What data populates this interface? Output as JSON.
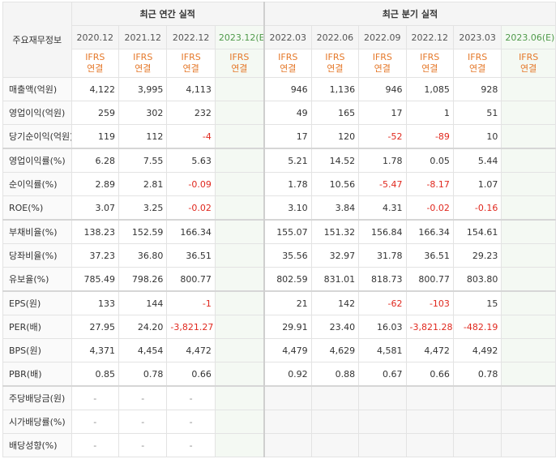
{
  "header": {
    "title_label": "주요재무정보",
    "annual_group": "최근 연간 실적",
    "quarter_group": "최근 분기 실적",
    "annual_periods": [
      "2020.12",
      "2021.12",
      "2022.12",
      "2023.12(E)"
    ],
    "quarter_periods": [
      "2022.03",
      "2022.06",
      "2022.09",
      "2022.12",
      "2023.03",
      "2023.06(E)"
    ],
    "ifrs_line1": "IFRS",
    "ifrs_line2": "연결"
  },
  "rows": [
    {
      "label": "매출액(억원)",
      "annual": [
        "4,122",
        "3,995",
        "4,113",
        ""
      ],
      "quarter": [
        "946",
        "1,136",
        "946",
        "1,085",
        "928",
        ""
      ]
    },
    {
      "label": "영업이익(억원)",
      "annual": [
        "259",
        "302",
        "232",
        ""
      ],
      "quarter": [
        "49",
        "165",
        "17",
        "1",
        "51",
        ""
      ]
    },
    {
      "label": "당기순이익(억원)",
      "annual": [
        "119",
        "112",
        "-4",
        ""
      ],
      "quarter": [
        "17",
        "120",
        "-52",
        "-89",
        "10",
        ""
      ]
    },
    {
      "label": "영업이익률(%)",
      "annual": [
        "6.28",
        "7.55",
        "5.63",
        ""
      ],
      "quarter": [
        "5.21",
        "14.52",
        "1.78",
        "0.05",
        "5.44",
        ""
      ]
    },
    {
      "label": "순이익률(%)",
      "annual": [
        "2.89",
        "2.81",
        "-0.09",
        ""
      ],
      "quarter": [
        "1.78",
        "10.56",
        "-5.47",
        "-8.17",
        "1.07",
        ""
      ]
    },
    {
      "label": "ROE(%)",
      "annual": [
        "3.07",
        "3.25",
        "-0.02",
        ""
      ],
      "quarter": [
        "3.10",
        "3.84",
        "4.31",
        "-0.02",
        "-0.16",
        ""
      ]
    },
    {
      "label": "부채비율(%)",
      "annual": [
        "138.23",
        "152.59",
        "166.34",
        ""
      ],
      "quarter": [
        "155.07",
        "151.32",
        "156.84",
        "166.34",
        "154.61",
        ""
      ]
    },
    {
      "label": "당좌비율(%)",
      "annual": [
        "37.23",
        "36.80",
        "36.51",
        ""
      ],
      "quarter": [
        "35.56",
        "32.97",
        "31.78",
        "36.51",
        "29.23",
        ""
      ]
    },
    {
      "label": "유보율(%)",
      "annual": [
        "785.49",
        "798.26",
        "800.77",
        ""
      ],
      "quarter": [
        "802.59",
        "831.01",
        "818.73",
        "800.77",
        "803.80",
        ""
      ]
    },
    {
      "label": "EPS(원)",
      "annual": [
        "133",
        "144",
        "-1",
        ""
      ],
      "quarter": [
        "21",
        "142",
        "-62",
        "-103",
        "15",
        ""
      ]
    },
    {
      "label": "PER(배)",
      "annual": [
        "27.95",
        "24.20",
        "-3,821.27",
        ""
      ],
      "quarter": [
        "29.91",
        "23.40",
        "16.03",
        "-3,821.28",
        "-482.19",
        ""
      ]
    },
    {
      "label": "BPS(원)",
      "annual": [
        "4,371",
        "4,454",
        "4,472",
        ""
      ],
      "quarter": [
        "4,479",
        "4,629",
        "4,581",
        "4,472",
        "4,492",
        ""
      ]
    },
    {
      "label": "PBR(배)",
      "annual": [
        "0.85",
        "0.78",
        "0.66",
        ""
      ],
      "quarter": [
        "0.92",
        "0.88",
        "0.67",
        "0.66",
        "0.78",
        ""
      ]
    },
    {
      "label": "주당배당금(원)",
      "annual": [
        "-",
        "-",
        "-",
        ""
      ],
      "quarter": [
        "",
        "",
        "",
        "",
        "",
        ""
      ],
      "quarter_blank": true
    },
    {
      "label": "시가배당률(%)",
      "annual": [
        "-",
        "-",
        "-",
        ""
      ],
      "quarter": [
        "",
        "",
        "",
        "",
        "",
        ""
      ],
      "quarter_blank": true
    },
    {
      "label": "배당성향(%)",
      "annual": [
        "-",
        "-",
        "-",
        ""
      ],
      "quarter": [
        "",
        "",
        "",
        "",
        "",
        ""
      ],
      "quarter_blank": true
    }
  ]
}
